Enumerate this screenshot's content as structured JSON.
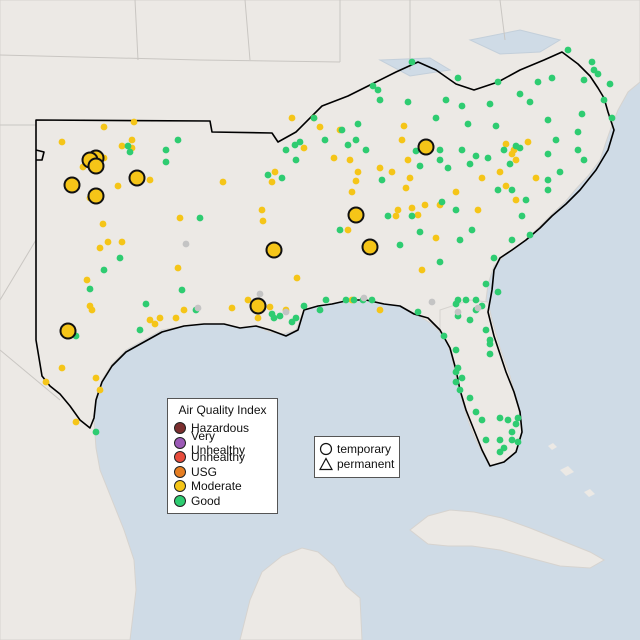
{
  "colors": {
    "ocean": "#cfdbe6",
    "land": "#ece9e5",
    "land_edge": "#d6d3cf",
    "region_outline": "#000000",
    "Good": "#2ecc71",
    "Moderate": "#f5c518",
    "USG": "#e67e22",
    "Unhealthy": "#e74c3c",
    "Very Unhealthy": "#9b59b6",
    "Hazardous": "#7b2f2f",
    "No data": "#c4c4c4"
  },
  "legend": {
    "title": "Air Quality Index",
    "categories": [
      {
        "label": "Hazardous",
        "color": "#7b2f2f"
      },
      {
        "label": "Very Unhealthy",
        "color": "#9b59b6"
      },
      {
        "label": "Unhealthy",
        "color": "#e74c3c"
      },
      {
        "label": "USG",
        "color": "#e67e22"
      },
      {
        "label": "Moderate",
        "color": "#f5c518"
      },
      {
        "label": "Good",
        "color": "#2ecc71"
      }
    ]
  },
  "marker_legend": {
    "temporary": "temporary",
    "permanent": "permanent"
  },
  "markers": {
    "large_moderate": 12,
    "small_moderate": 95,
    "small_good": 130,
    "small_nodata": 8
  }
}
